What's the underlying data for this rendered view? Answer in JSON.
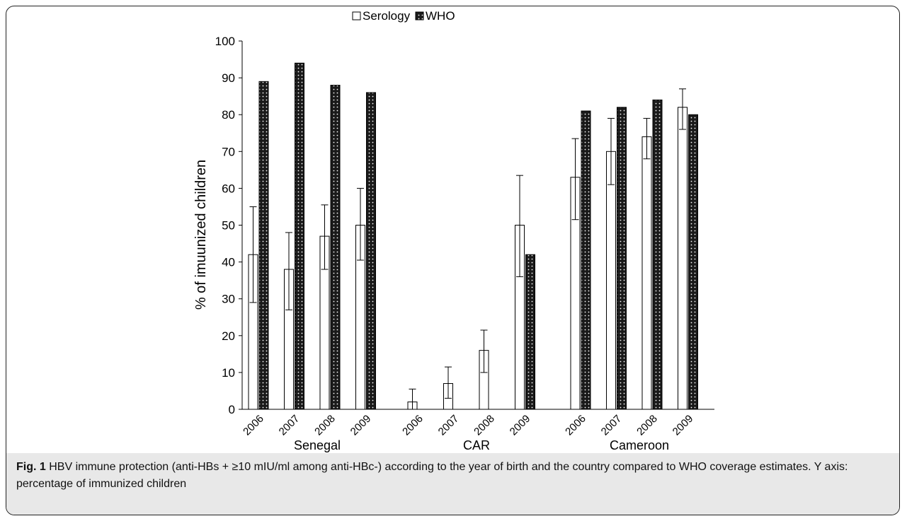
{
  "chart_data": {
    "type": "bar",
    "ylabel": "% of imuunized children",
    "ylim": [
      0,
      100
    ],
    "yticks": [
      0,
      10,
      20,
      30,
      40,
      50,
      60,
      70,
      80,
      90,
      100
    ],
    "grid": false,
    "legend_placement": "top-center",
    "groups": [
      {
        "name": "Senegal",
        "categories": [
          "2006",
          "2007",
          "2008",
          "2009"
        ]
      },
      {
        "name": "CAR",
        "categories": [
          "2006",
          "2007",
          "2008",
          "2009"
        ]
      },
      {
        "name": "Cameroon",
        "categories": [
          "2006",
          "2007",
          "2008",
          "2009"
        ]
      }
    ],
    "series": [
      {
        "name": "Serology",
        "color": "#ffffff",
        "values": [
          42,
          38,
          47,
          50,
          2,
          7,
          16,
          50,
          63,
          70,
          74,
          82
        ],
        "error_low": [
          29,
          27,
          38,
          40.5,
          0,
          3,
          10,
          36,
          51.5,
          61,
          68,
          76
        ],
        "error_high": [
          55,
          48,
          55.5,
          60,
          5.5,
          11.5,
          21.5,
          63.5,
          73.5,
          79,
          79,
          87
        ]
      },
      {
        "name": "WHO",
        "color": "#1a1a1a",
        "values": [
          89,
          94,
          88,
          86,
          null,
          null,
          null,
          42,
          81,
          82,
          84,
          80
        ]
      }
    ]
  },
  "legend": {
    "serology_label": "Serology",
    "who_label": "WHO"
  },
  "caption": {
    "label": "Fig. 1",
    "text": " HBV immune protection (anti-HBs + ≥10 mIU/ml among anti-HBc-) according to the year of birth and the country compared to WHO coverage estimates. Y axis: percentage of immunized children"
  }
}
